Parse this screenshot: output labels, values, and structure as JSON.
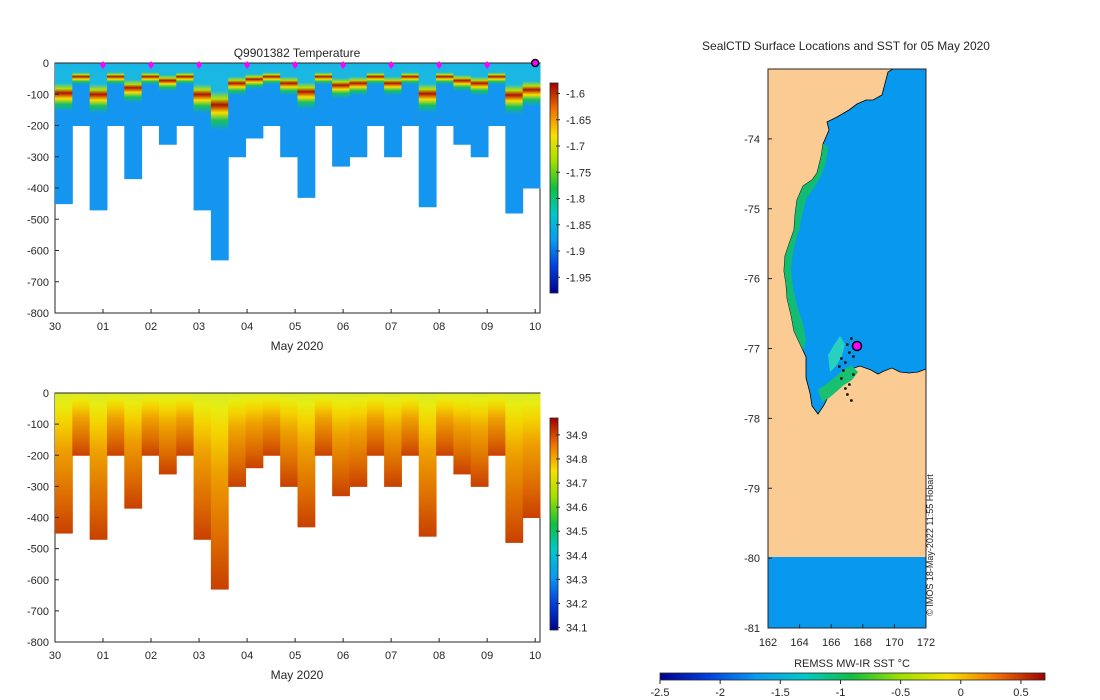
{
  "chart_data": [
    {
      "type": "heatmap",
      "title": "Q9901382  Temperature",
      "xlabel": "May 2020",
      "ylabel": "",
      "x_tick_labels": [
        "30",
        "01",
        "02",
        "03",
        "04",
        "05",
        "06",
        "07",
        "08",
        "09",
        "10"
      ],
      "x_range_days": [
        0,
        10.1
      ],
      "ylim": [
        -800,
        0
      ],
      "y_tick_labels": [
        "0",
        "-100",
        "-200",
        "-300",
        "-400",
        "-500",
        "-600",
        "-700",
        "-800"
      ],
      "colorbar": {
        "range": [
          -1.98,
          -1.58
        ],
        "tick_labels": [
          "-1.6",
          "-1.65",
          "-1.7",
          "-1.75",
          "-1.8",
          "-1.85",
          "-1.9",
          "-1.95"
        ],
        "tick_values": [
          -1.6,
          -1.65,
          -1.7,
          -1.75,
          -1.8,
          -1.85,
          -1.9,
          -1.95
        ]
      },
      "surface_markers_day": [
        1,
        2,
        3,
        4,
        5,
        6,
        7,
        8,
        9
      ],
      "last_profile_marker_day": 10
    },
    {
      "type": "heatmap",
      "title": "",
      "xlabel": "May 2020",
      "ylabel": "",
      "x_tick_labels": [
        "30",
        "01",
        "02",
        "03",
        "04",
        "05",
        "06",
        "07",
        "08",
        "09",
        "10"
      ],
      "x_range_days": [
        0,
        10.1
      ],
      "ylim": [
        -800,
        0
      ],
      "y_tick_labels": [
        "0",
        "-100",
        "-200",
        "-300",
        "-400",
        "-500",
        "-600",
        "-700",
        "-800"
      ],
      "colorbar": {
        "range": [
          34.09,
          34.97
        ],
        "tick_labels": [
          "34.9",
          "34.8",
          "34.7",
          "34.6",
          "34.5",
          "34.4",
          "34.3",
          "34.2",
          "34.1"
        ],
        "tick_values": [
          34.9,
          34.8,
          34.7,
          34.6,
          34.5,
          34.4,
          34.3,
          34.2,
          34.1
        ]
      }
    },
    {
      "type": "heatmap",
      "title": "SealCTD Surface Locations and SST for 05 May 2020",
      "xlabel": "",
      "ylabel": "",
      "xlim": [
        162,
        172
      ],
      "ylim": [
        -81,
        -73
      ],
      "x_tick_labels": [
        "162",
        "164",
        "166",
        "168",
        "170",
        "172"
      ],
      "y_tick_labels": [
        "-74",
        "-75",
        "-76",
        "-77",
        "-78",
        "-79",
        "-80",
        "-81"
      ],
      "colorbar_label": "REMSS MW-IR SST °C",
      "colorbar": {
        "range": [
          -2.5,
          0.7
        ],
        "tick_labels": [
          "-2.5",
          "-2",
          "-1.5",
          "-1",
          "-0.5",
          "0",
          "0.5"
        ],
        "tick_values": [
          -2.5,
          -2,
          -1.5,
          -1,
          -0.5,
          0,
          0.5
        ]
      },
      "credit": "© IMOS 18-May-2022 11:55 Hobart",
      "last_position": {
        "lon": 168.1,
        "lat": -77.0
      }
    }
  ],
  "colors": {
    "land": "#fbcb94",
    "open_ocean_sst": "#0898ee",
    "marker": "#ff00ff"
  }
}
